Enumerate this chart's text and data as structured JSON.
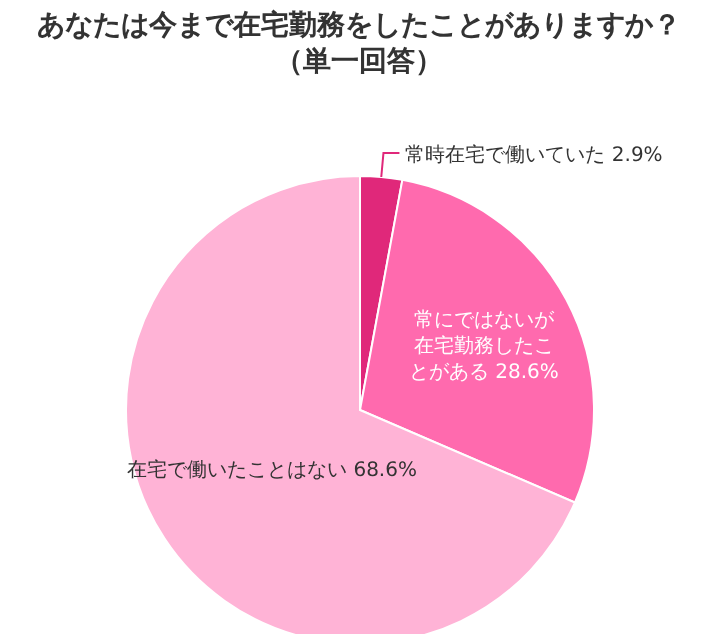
{
  "chart_data": {
    "type": "pie",
    "title": "あなたは今まで在宅勤務をしたことがありますか？（単一回答）",
    "categories": [
      "常時在宅で働いていた",
      "常にではないが在宅勤務したことがある",
      "在宅で働いたことはない"
    ],
    "values": [
      2.9,
      28.6,
      68.6
    ],
    "value_labels": [
      "2.9%",
      "28.6%",
      "68.6%"
    ],
    "colors": [
      "#e0287a",
      "#ff6aae",
      "#ffb3d6"
    ],
    "legend": false
  }
}
